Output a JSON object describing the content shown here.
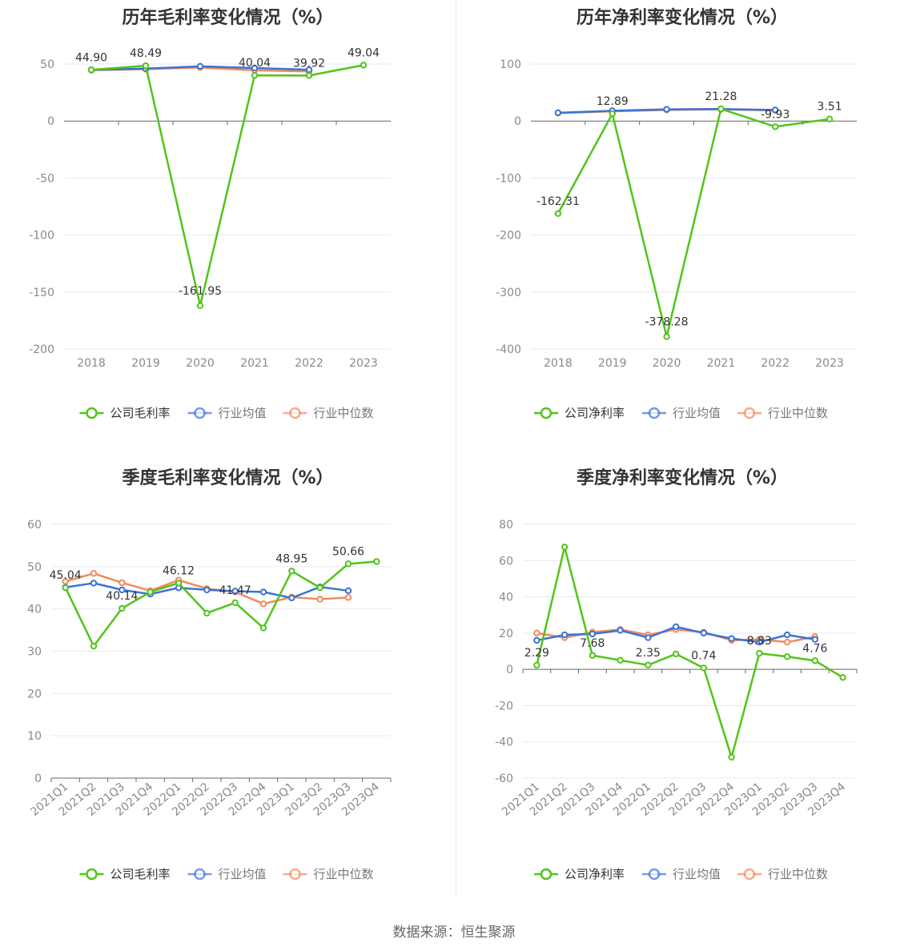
{
  "source_text": "数据来源：恒生聚源",
  "colors": {
    "company": "#52c41a",
    "avg": "#3a73d6",
    "median": "#f08a5d",
    "grid": "#e6e9f2",
    "axis": "#666666"
  },
  "legend_names": {
    "gross": [
      "公司毛利率",
      "行业均值",
      "行业中位数"
    ],
    "net": [
      "公司净利率",
      "行业均值",
      "行业中位数"
    ]
  },
  "chart_data": [
    {
      "type": "line",
      "title": "历年毛利率变化情况（%）",
      "categories": [
        "2018",
        "2019",
        "2020",
        "2021",
        "2022",
        "2023"
      ],
      "ylim": [
        -200,
        50
      ],
      "yticks": [
        50,
        0,
        -50,
        -100,
        -150,
        -200
      ],
      "grid": true,
      "legend_position": "bottom",
      "series": [
        {
          "name": "公司毛利率",
          "values": [
            44.9,
            48.49,
            -161.95,
            40.04,
            39.92,
            49.04
          ],
          "labels": [
            "44.90",
            "48.49",
            "-161.95",
            "40.04",
            "39.92",
            "49.04"
          ]
        },
        {
          "name": "行业均值",
          "values": [
            45.0,
            46.0,
            48.0,
            46.5,
            45.0,
            null
          ],
          "labels": []
        },
        {
          "name": "行业中位数",
          "values": [
            44.5,
            45.5,
            47.0,
            44.5,
            43.5,
            null
          ],
          "labels": []
        }
      ]
    },
    {
      "type": "line",
      "title": "历年净利率变化情况（%）",
      "categories": [
        "2018",
        "2019",
        "2020",
        "2021",
        "2022",
        "2023"
      ],
      "ylim": [
        -400,
        100
      ],
      "yticks": [
        100,
        0,
        -100,
        -200,
        -300,
        -400
      ],
      "grid": true,
      "legend_position": "bottom",
      "series": [
        {
          "name": "公司净利率",
          "values": [
            -162.31,
            12.89,
            -378.28,
            21.28,
            -9.93,
            3.51
          ],
          "labels": [
            "-162.31",
            "12.89",
            "-378.28",
            "21.28",
            "-9.93",
            "3.51"
          ]
        },
        {
          "name": "行业均值",
          "values": [
            14.5,
            18.0,
            20.5,
            21.0,
            19.5,
            null
          ],
          "labels": []
        },
        {
          "name": "行业中位数",
          "values": [
            14.0,
            17.0,
            19.5,
            20.5,
            18.5,
            null
          ],
          "labels": []
        }
      ]
    },
    {
      "type": "line",
      "title": "季度毛利率变化情况（%）",
      "categories": [
        "2021Q1",
        "2021Q2",
        "2021Q3",
        "2021Q4",
        "2022Q1",
        "2022Q2",
        "2022Q3",
        "2022Q4",
        "2023Q1",
        "2023Q2",
        "2023Q3",
        "2023Q4"
      ],
      "ylim": [
        0,
        60
      ],
      "yticks": [
        60,
        50,
        40,
        30,
        20,
        10,
        0
      ],
      "grid": true,
      "legend_position": "bottom",
      "series": [
        {
          "name": "公司毛利率",
          "values": [
            45.04,
            31.2,
            40.14,
            44.0,
            46.12,
            39.0,
            41.47,
            35.5,
            48.95,
            45.0,
            50.66,
            51.2
          ],
          "labels": [
            "45.04",
            "",
            "40.14",
            "",
            "46.12",
            "",
            "41.47",
            "",
            "48.95",
            "",
            "50.66",
            ""
          ]
        },
        {
          "name": "行业均值",
          "values": [
            45.1,
            46.1,
            44.5,
            43.5,
            45.0,
            44.5,
            44.2,
            44.0,
            42.6,
            45.2,
            44.3,
            null
          ],
          "labels": []
        },
        {
          "name": "行业中位数",
          "values": [
            46.5,
            48.4,
            46.2,
            44.3,
            46.8,
            44.8,
            44.0,
            41.2,
            42.8,
            42.3,
            42.7,
            null
          ],
          "labels": []
        }
      ]
    },
    {
      "type": "line",
      "title": "季度净利率变化情况（%）",
      "categories": [
        "2021Q1",
        "2021Q2",
        "2021Q3",
        "2021Q4",
        "2022Q1",
        "2022Q2",
        "2022Q3",
        "2022Q4",
        "2023Q1",
        "2023Q2",
        "2023Q3",
        "2023Q4"
      ],
      "ylim": [
        -60,
        80
      ],
      "yticks": [
        80,
        60,
        40,
        20,
        0,
        -20,
        -40,
        -60
      ],
      "grid": true,
      "legend_position": "bottom",
      "series": [
        {
          "name": "公司净利率",
          "values": [
            2.29,
            67.5,
            7.68,
            5.0,
            2.35,
            8.5,
            0.74,
            -48.5,
            8.83,
            7.0,
            4.76,
            -4.5
          ],
          "labels": [
            "2.29",
            "",
            "7.68",
            "",
            "2.35",
            "",
            "0.74",
            "",
            "8.83",
            "",
            "4.76",
            ""
          ]
        },
        {
          "name": "行业均值",
          "values": [
            16.0,
            19.0,
            19.5,
            21.5,
            17.5,
            23.5,
            20.0,
            17.0,
            15.0,
            19.0,
            16.5,
            null
          ],
          "labels": []
        },
        {
          "name": "行业中位数",
          "values": [
            20.0,
            17.5,
            20.5,
            22.0,
            19.0,
            22.0,
            20.5,
            16.0,
            16.5,
            15.0,
            18.0,
            null
          ],
          "labels": []
        }
      ]
    }
  ]
}
